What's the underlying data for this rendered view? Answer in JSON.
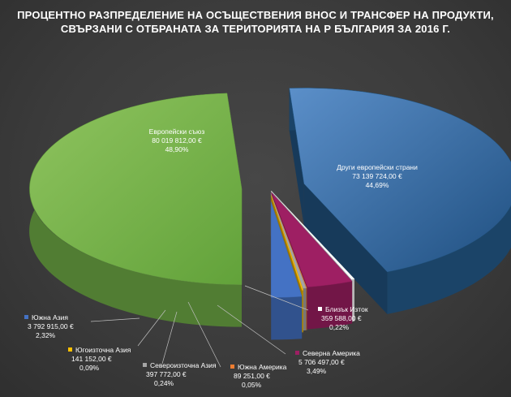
{
  "chart_data": {
    "type": "pie",
    "title_lines": [
      "ПРОЦЕНТНО РАЗПРЕДЕЛЕНИЕ НА ОСЪЩЕСТВЕНИЯ ВНОС И ТРАНСФЕР НА ПРОДУКТИ,",
      "СВЪРЗАНИ С ОТБРАНАТА ЗА ТЕРИТОРИЯТА НА Р БЪЛГАРИЯ ЗА 2016 Г."
    ],
    "slices": [
      {
        "name": "Европейски съюз",
        "value_label": "80 019 812,00 €",
        "value": 80019812.0,
        "percent_label": "48,90%",
        "percent": 48.9,
        "color": "#70ad47"
      },
      {
        "name": "Други европейски страни",
        "value_label": "73 139 724,00 €",
        "value": 73139724.0,
        "percent_label": "44,69%",
        "percent": 44.69,
        "color": "#255e91"
      },
      {
        "name": "Близък Изток",
        "value_label": "359 588,00 €",
        "value": 359588.0,
        "percent_label": "0,22%",
        "percent": 0.22,
        "color": "#ffffff"
      },
      {
        "name": "Северна Америка",
        "value_label": "5 706 497,00 €",
        "value": 5706497.0,
        "percent_label": "3,49%",
        "percent": 3.49,
        "color": "#9e1f63"
      },
      {
        "name": "Южна Америка",
        "value_label": "89 251,00 €",
        "value": 89251.0,
        "percent_label": "0,05%",
        "percent": 0.05,
        "color": "#ed7d31"
      },
      {
        "name": "Североизточна Азия",
        "value_label": "397 772,00 €",
        "value": 397772.0,
        "percent_label": "0,24%",
        "percent": 0.24,
        "color": "#a5a5a5"
      },
      {
        "name": "Югоизточна Азия",
        "value_label": "141 152,00 €",
        "value": 141152.0,
        "percent_label": "0,09%",
        "percent": 0.09,
        "color": "#ffc000"
      },
      {
        "name": "Южна Азия",
        "value_label": "3 792 915,00 €",
        "value": 3792915.0,
        "percent_label": "2,32%",
        "percent": 2.32,
        "color": "#4472c4"
      }
    ]
  }
}
